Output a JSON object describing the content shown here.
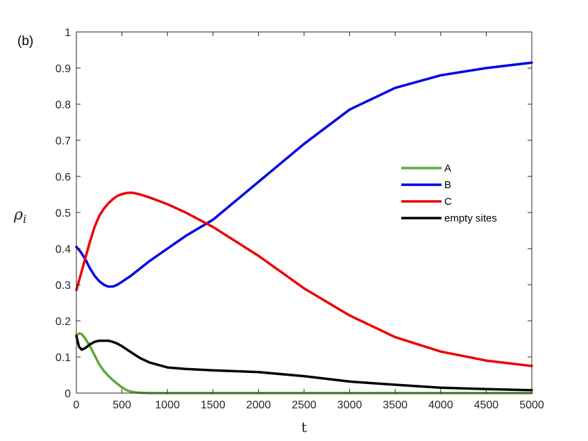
{
  "chart_data": {
    "type": "line",
    "panel_label": "(b)",
    "xlabel": "t",
    "ylabel": "ρ",
    "ylabel_subscript": "i",
    "xlim": [
      0,
      5000
    ],
    "ylim": [
      0,
      1
    ],
    "xticks": [
      0,
      500,
      1000,
      1500,
      2000,
      2500,
      3000,
      3500,
      4000,
      4500,
      5000
    ],
    "yticks": [
      0,
      0.1,
      0.2,
      0.3,
      0.4,
      0.5,
      0.6,
      0.7,
      0.8,
      0.9,
      1
    ],
    "ytick_labels": [
      "0",
      "0.1",
      "0.2",
      "0.3",
      "0.4",
      "0.5",
      "0.6",
      "0.7",
      "0.8",
      "0.9",
      "1"
    ],
    "grid": false,
    "legend_position": "right-middle",
    "series": [
      {
        "name": "A",
        "color": "#5fa83a",
        "x": [
          0,
          30,
          60,
          100,
          150,
          200,
          250,
          300,
          350,
          400,
          450,
          500,
          550,
          600,
          650,
          700,
          800,
          1000,
          1500,
          2000,
          3000,
          4000,
          5000
        ],
        "y": [
          0.16,
          0.165,
          0.163,
          0.15,
          0.13,
          0.105,
          0.08,
          0.062,
          0.048,
          0.036,
          0.026,
          0.016,
          0.008,
          0.004,
          0.002,
          0.001,
          0.0,
          0.0,
          0.0,
          0.0,
          0.0,
          0.0,
          0.0
        ]
      },
      {
        "name": "B",
        "color": "#0000e6",
        "x": [
          0,
          50,
          100,
          150,
          200,
          250,
          300,
          350,
          400,
          450,
          500,
          600,
          700,
          800,
          1000,
          1200,
          1500,
          2000,
          2500,
          3000,
          3500,
          4000,
          4500,
          5000
        ],
        "y": [
          0.405,
          0.39,
          0.37,
          0.345,
          0.325,
          0.31,
          0.3,
          0.295,
          0.295,
          0.3,
          0.308,
          0.325,
          0.345,
          0.365,
          0.4,
          0.435,
          0.48,
          0.585,
          0.69,
          0.785,
          0.845,
          0.88,
          0.9,
          0.915
        ]
      },
      {
        "name": "C",
        "color": "#ee0000",
        "x": [
          0,
          50,
          100,
          150,
          200,
          250,
          300,
          350,
          400,
          450,
          500,
          550,
          600,
          650,
          700,
          800,
          1000,
          1200,
          1500,
          2000,
          2500,
          3000,
          3500,
          4000,
          4500,
          5000
        ],
        "y": [
          0.285,
          0.33,
          0.375,
          0.42,
          0.46,
          0.49,
          0.51,
          0.525,
          0.537,
          0.546,
          0.551,
          0.554,
          0.555,
          0.553,
          0.55,
          0.542,
          0.523,
          0.5,
          0.46,
          0.38,
          0.29,
          0.215,
          0.155,
          0.115,
          0.09,
          0.075
        ]
      },
      {
        "name": "empty sites",
        "color": "#000000",
        "x": [
          0,
          30,
          60,
          100,
          150,
          200,
          250,
          300,
          350,
          400,
          450,
          500,
          600,
          700,
          800,
          1000,
          1200,
          1500,
          2000,
          2500,
          3000,
          3500,
          4000,
          4500,
          5000
        ],
        "y": [
          0.158,
          0.128,
          0.12,
          0.125,
          0.135,
          0.142,
          0.145,
          0.145,
          0.145,
          0.142,
          0.137,
          0.13,
          0.113,
          0.097,
          0.085,
          0.071,
          0.067,
          0.063,
          0.058,
          0.047,
          0.032,
          0.023,
          0.015,
          0.011,
          0.008
        ]
      }
    ]
  }
}
